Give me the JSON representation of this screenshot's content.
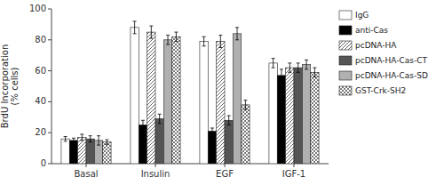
{
  "chart_data": {
    "type": "bar",
    "categories": [
      "Basal",
      "Insulin",
      "EGF",
      "IGF-1"
    ],
    "series": [
      {
        "name": "IgG",
        "color": "white",
        "values": [
          16,
          88,
          79,
          65
        ],
        "errors": [
          1.5,
          4,
          3,
          3
        ]
      },
      {
        "name": "anti-Cas",
        "color": "black",
        "values": [
          15,
          25,
          21,
          57
        ],
        "errors": [
          1.5,
          3,
          2,
          4
        ]
      },
      {
        "name": "pcDNA-HA",
        "color": "white",
        "values": [
          17,
          85,
          79,
          62
        ],
        "errors": [
          2,
          4,
          4,
          3
        ]
      },
      {
        "name": "pcDNA-HA-Cas-CT",
        "color": "#555555",
        "values": [
          16,
          29,
          28,
          62
        ],
        "errors": [
          2,
          3,
          3,
          3
        ]
      },
      {
        "name": "pcDNA-HA-Cas-SD",
        "color": "#b0b0b0",
        "values": [
          15,
          80,
          84,
          64
        ],
        "errors": [
          3,
          3,
          4,
          3
        ]
      },
      {
        "name": "GST-Crk-SH2",
        "color": "white",
        "values": [
          14,
          82,
          38,
          59
        ],
        "errors": [
          1.5,
          3,
          3,
          3
        ]
      }
    ],
    "ylabel": "BrdU Incorporation\n(% cells)",
    "ylim": [
      0,
      100
    ],
    "yticks": [
      0,
      20,
      40,
      60,
      80,
      100
    ],
    "grid": false,
    "legend": "right"
  }
}
